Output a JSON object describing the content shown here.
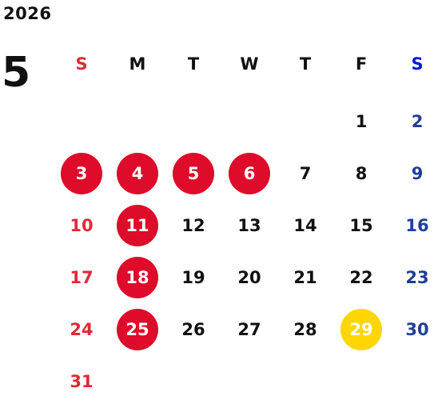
{
  "year": "2026",
  "month": "5",
  "colors": {
    "sunday": "#e02a36",
    "saturday": "#1f3f96",
    "weekday_blue": "#0019d6",
    "holiday_bg": "#df0b2a",
    "highlight_bg": "#ffd600",
    "text": "#111111"
  },
  "weekdays": [
    {
      "label": "S",
      "color": "#e02a36"
    },
    {
      "label": "M",
      "color": "#111111"
    },
    {
      "label": "T",
      "color": "#111111"
    },
    {
      "label": "W",
      "color": "#111111"
    },
    {
      "label": "T",
      "color": "#111111"
    },
    {
      "label": "F",
      "color": "#111111"
    },
    {
      "label": "S",
      "color": "#0019d6"
    }
  ],
  "weeks": [
    [
      null,
      null,
      null,
      null,
      null,
      {
        "day": "1",
        "kind": "default"
      },
      {
        "day": "2",
        "kind": "sat"
      }
    ],
    [
      {
        "day": "3",
        "kind": "holiday"
      },
      {
        "day": "4",
        "kind": "holiday"
      },
      {
        "day": "5",
        "kind": "holiday"
      },
      {
        "day": "6",
        "kind": "holiday"
      },
      {
        "day": "7",
        "kind": "default"
      },
      {
        "day": "8",
        "kind": "default"
      },
      {
        "day": "9",
        "kind": "sat"
      }
    ],
    [
      {
        "day": "10",
        "kind": "sun"
      },
      {
        "day": "11",
        "kind": "holiday"
      },
      {
        "day": "12",
        "kind": "default"
      },
      {
        "day": "13",
        "kind": "default"
      },
      {
        "day": "14",
        "kind": "default"
      },
      {
        "day": "15",
        "kind": "default"
      },
      {
        "day": "16",
        "kind": "sat"
      }
    ],
    [
      {
        "day": "17",
        "kind": "sun"
      },
      {
        "day": "18",
        "kind": "holiday"
      },
      {
        "day": "19",
        "kind": "default"
      },
      {
        "day": "20",
        "kind": "default"
      },
      {
        "day": "21",
        "kind": "default"
      },
      {
        "day": "22",
        "kind": "default"
      },
      {
        "day": "23",
        "kind": "sat"
      }
    ],
    [
      {
        "day": "24",
        "kind": "sun"
      },
      {
        "day": "25",
        "kind": "holiday"
      },
      {
        "day": "26",
        "kind": "default"
      },
      {
        "day": "27",
        "kind": "default"
      },
      {
        "day": "28",
        "kind": "default"
      },
      {
        "day": "29",
        "kind": "highlight"
      },
      {
        "day": "30",
        "kind": "sat"
      }
    ],
    [
      {
        "day": "31",
        "kind": "sun"
      },
      null,
      null,
      null,
      null,
      null,
      null
    ]
  ]
}
